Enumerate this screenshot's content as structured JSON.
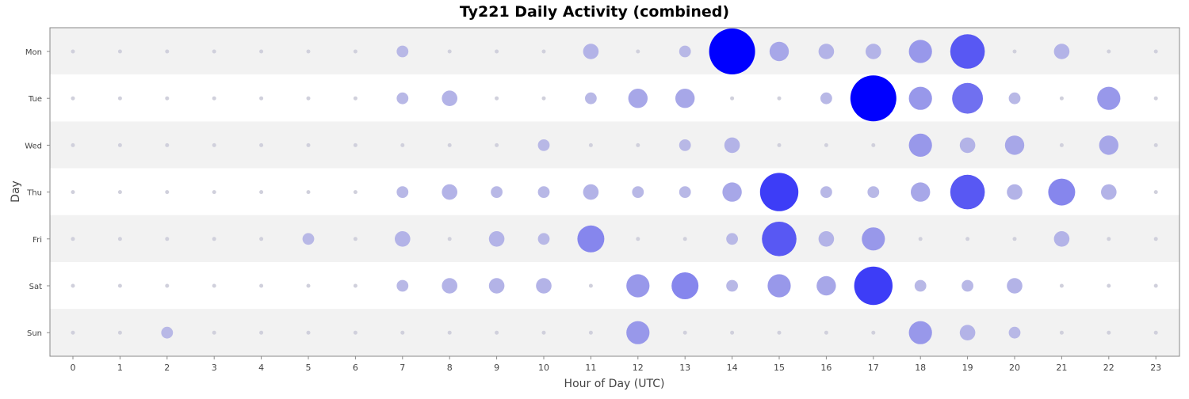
{
  "chart_data": {
    "type": "scatter",
    "subtype": "bubble",
    "title": "Ty221 Daily Activity (combined)",
    "xlabel": "Hour of Day (UTC)",
    "ylabel": "Day",
    "x_categories": [
      "0",
      "1",
      "2",
      "3",
      "4",
      "5",
      "6",
      "7",
      "8",
      "9",
      "10",
      "11",
      "12",
      "13",
      "14",
      "15",
      "16",
      "17",
      "18",
      "19",
      "20",
      "21",
      "22",
      "23"
    ],
    "y_categories": [
      "Mon",
      "Tue",
      "Wed",
      "Thu",
      "Fri",
      "Sat",
      "Sun"
    ],
    "xlim": [
      0,
      23
    ],
    "grid": false,
    "alternating_row_bands": true,
    "colors": {
      "zero": "#d0d0dc",
      "low": "#b8b8e6",
      "high": "#0000ff",
      "band": "#f2f2f2",
      "frame": "#888888"
    },
    "values": [
      [
        0,
        0,
        0,
        0,
        0,
        0,
        0,
        1,
        0,
        0,
        0,
        2,
        0,
        1,
        10,
        3,
        2,
        2,
        4,
        7,
        0,
        2,
        0,
        0
      ],
      [
        0,
        0,
        0,
        0,
        0,
        0,
        0,
        1,
        2,
        0,
        0,
        1,
        3,
        3,
        0,
        0,
        1,
        10,
        4,
        6,
        1,
        0,
        4,
        0
      ],
      [
        0,
        0,
        0,
        0,
        0,
        0,
        0,
        0,
        0,
        0,
        1,
        0,
        0,
        1,
        2,
        0,
        0,
        0,
        4,
        2,
        3,
        0,
        3,
        0
      ],
      [
        0,
        0,
        0,
        0,
        0,
        0,
        0,
        1,
        2,
        1,
        1,
        2,
        1,
        1,
        3,
        8,
        1,
        1,
        3,
        7,
        2,
        5,
        2,
        0
      ],
      [
        0,
        0,
        0,
        0,
        0,
        1,
        0,
        2,
        0,
        2,
        1,
        5,
        0,
        0,
        1,
        7,
        2,
        4,
        0,
        0,
        0,
        2,
        0,
        0
      ],
      [
        0,
        0,
        0,
        0,
        0,
        0,
        0,
        1,
        2,
        2,
        2,
        0,
        4,
        5,
        1,
        4,
        3,
        8,
        1,
        1,
        2,
        0,
        0,
        0
      ],
      [
        0,
        0,
        1,
        0,
        0,
        0,
        0,
        0,
        0,
        0,
        0,
        0,
        4,
        0,
        0,
        0,
        0,
        0,
        4,
        2,
        1,
        0,
        0,
        0
      ]
    ]
  }
}
